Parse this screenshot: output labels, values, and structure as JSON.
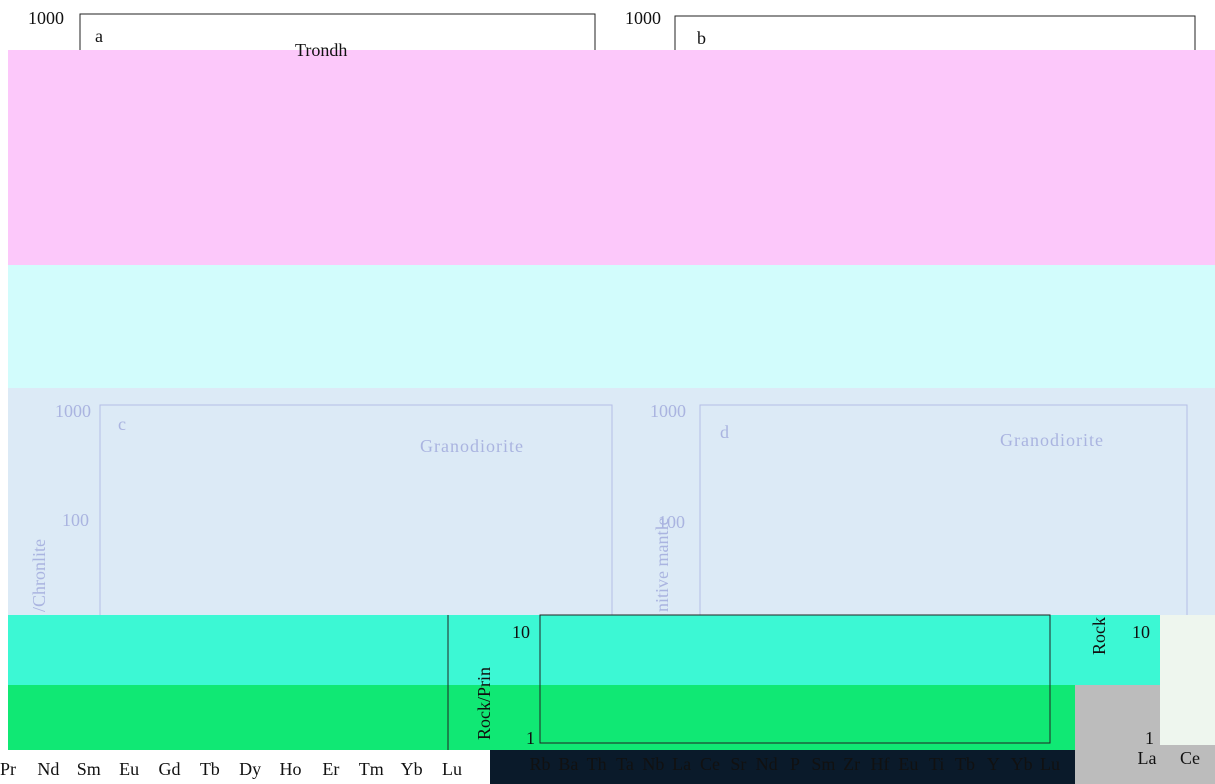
{
  "panels": {
    "a": {
      "label": "a",
      "top_tick": "1000",
      "title": "Trondh"
    },
    "b": {
      "label": "b",
      "top_tick": "1000"
    },
    "c": {
      "label": "c",
      "top_tick": "1000",
      "mid_tick": "100",
      "rock": "Granodiorite",
      "ylabel": "/Chronlite"
    },
    "d": {
      "label": "d",
      "top_tick": "1000",
      "mid_tick": "100",
      "rock": "Granodiorite",
      "ylabel": "nitive mantle"
    },
    "e": {
      "ticks": [
        "10",
        "1"
      ],
      "ylabel": "Rock/Prin",
      "elements": [
        "Rb",
        "Ba",
        "Th",
        "Ta",
        "Nb",
        "La",
        "Ce",
        "Sr",
        "Nd",
        "P",
        "Sm",
        "Zr",
        "Hf",
        "Eu",
        "Ti",
        "Tb",
        "Y",
        "Yb",
        "Lu"
      ]
    },
    "f": {
      "ticks": [
        "10",
        "1"
      ],
      "ylabel": "Rock",
      "elements": [
        "La",
        "Ce"
      ]
    },
    "g": {
      "elements": [
        "Pr",
        "Nd",
        "Sm",
        "Eu",
        "Gd",
        "Tb",
        "Dy",
        "Ho",
        "Er",
        "Tm",
        "Yb",
        "Lu"
      ]
    }
  }
}
